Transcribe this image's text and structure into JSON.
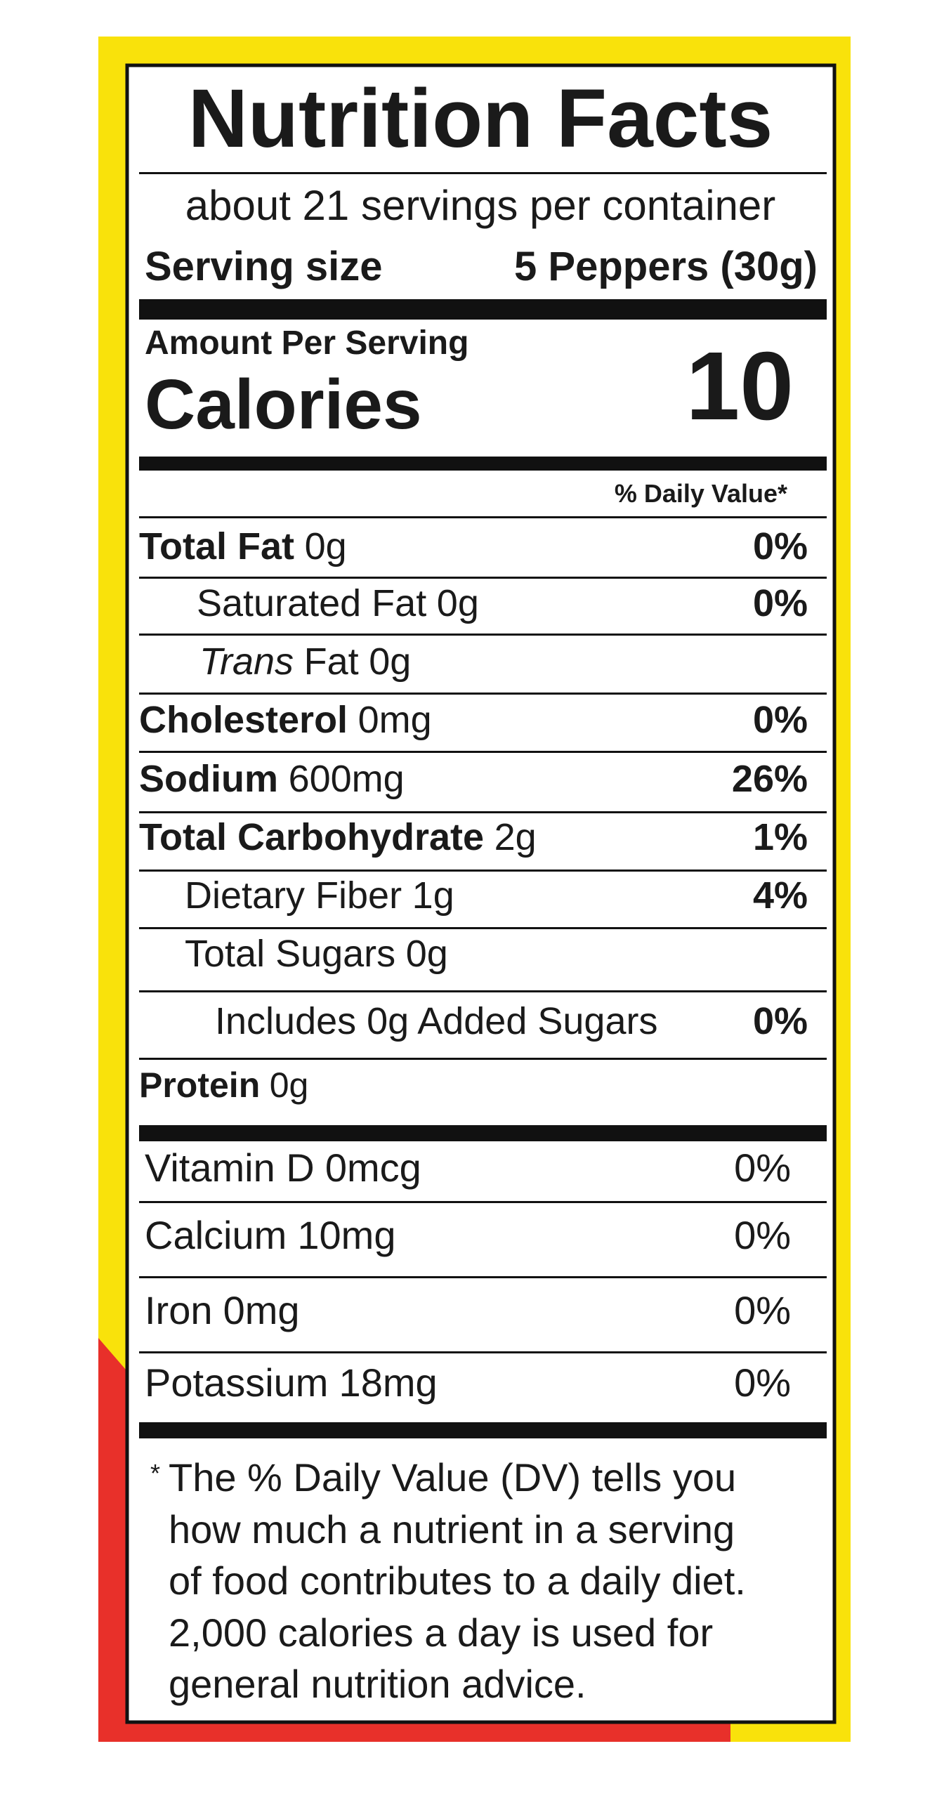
{
  "title": "Nutrition Facts",
  "servings": "about 21 servings per container",
  "serving_size": {
    "label": "Serving size",
    "value": "5 Peppers (30g)"
  },
  "amount_per_serving": "Amount Per Serving",
  "calories": {
    "label": "Calories",
    "value": "10"
  },
  "dv_header": "% Daily Value*",
  "nutrients": [
    {
      "name": "Total Fat",
      "amount": "0g",
      "dv": "0%"
    },
    {
      "name": "Saturated Fat",
      "amount": "0g",
      "dv": "0%"
    },
    {
      "italic": "Trans",
      "name": "Fat",
      "amount": "0g"
    },
    {
      "name": "Cholesterol",
      "amount": "0mg",
      "dv": "0%"
    },
    {
      "name": "Sodium",
      "amount": "600mg",
      "dv": "26%"
    },
    {
      "name": "Total Carbohydrate",
      "amount": "2g",
      "dv": "1%"
    },
    {
      "name": "Dietary Fiber",
      "amount": "1g",
      "dv": "4%"
    },
    {
      "name": "Total Sugars",
      "amount": "0g"
    },
    {
      "name": "Includes 0g Added Sugars",
      "dv": "0%"
    },
    {
      "name": "Protein",
      "amount": "0g"
    }
  ],
  "vitamins": [
    {
      "name": "Vitamin D",
      "amount": "0mcg",
      "dv": "0%"
    },
    {
      "name": "Calcium",
      "amount": "10mg",
      "dv": "0%"
    },
    {
      "name": "Iron",
      "amount": "0mg",
      "dv": "0%"
    },
    {
      "name": "Potassium",
      "amount": "18mg",
      "dv": "0%"
    }
  ],
  "footnote": {
    "marker": "*",
    "lines": [
      "The % Daily Value (DV) tells you",
      "how much a nutrient in a serving",
      "of food contributes to a daily diet.",
      "2,000 calories a day is used for",
      "general nutrition advice."
    ]
  }
}
